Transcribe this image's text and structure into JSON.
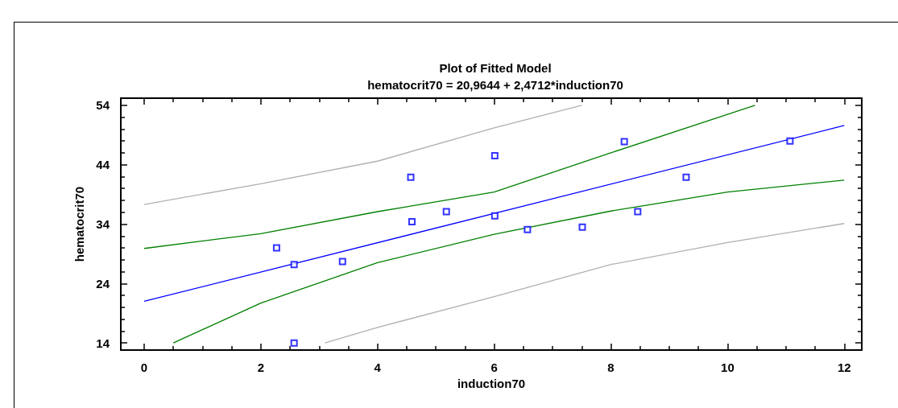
{
  "chart_data": {
    "type": "scatter",
    "title": "Plot of Fitted Model",
    "subtitle": "hematocrit70 = 20,9644 + 2,4712*induction70",
    "xlabel": "induction70",
    "ylabel": "hematocrit70",
    "xlim": [
      -0.4,
      12.3
    ],
    "ylim": [
      12.8,
      55.2
    ],
    "xticks": [
      0,
      {
        "value": 0.5,
        "label": null
      },
      {
        "value": 1,
        "label": null
      },
      {
        "value": 1.5,
        "label": null
      },
      2,
      {
        "value": 2.5,
        "label": null
      },
      {
        "value": 3,
        "label": null
      },
      {
        "value": 3.5,
        "label": null
      },
      4,
      {
        "value": 4.5,
        "label": null
      },
      {
        "value": 5,
        "label": null
      },
      {
        "value": 5.5,
        "label": null
      },
      6,
      {
        "value": 6.5,
        "label": null
      },
      {
        "value": 7,
        "label": null
      },
      {
        "value": 7.5,
        "label": null
      },
      8,
      {
        "value": 8.5,
        "label": null
      },
      {
        "value": 9,
        "label": null
      },
      {
        "value": 9.5,
        "label": null
      },
      10,
      {
        "value": 10.5,
        "label": null
      },
      {
        "value": 11,
        "label": null
      },
      {
        "value": 11.5,
        "label": null
      },
      12
    ],
    "yticks": [
      14,
      {
        "value": 16,
        "label": null
      },
      {
        "value": 18,
        "label": null
      },
      {
        "value": 20,
        "label": null
      },
      {
        "value": 22,
        "label": null
      },
      24,
      {
        "value": 26,
        "label": null
      },
      {
        "value": 28,
        "label": null
      },
      {
        "value": 30,
        "label": null
      },
      {
        "value": 32,
        "label": null
      },
      34,
      {
        "value": 36,
        "label": null
      },
      {
        "value": 38,
        "label": null
      },
      {
        "value": 40,
        "label": null
      },
      {
        "value": 42,
        "label": null
      },
      44,
      {
        "value": 46,
        "label": null
      },
      {
        "value": 48,
        "label": null
      },
      {
        "value": 50,
        "label": null
      },
      {
        "value": 52,
        "label": null
      },
      54
    ],
    "grid": false,
    "series": [
      {
        "marker": "square",
        "color": "#0000ff",
        "x": [
          2.27,
          2.57,
          2.57,
          3.4,
          4.57,
          4.59,
          5.18,
          6.01,
          6.01,
          6.57,
          7.51,
          8.23,
          8.46,
          9.29,
          11.07
        ],
        "values": [
          30.0,
          27.2,
          14.0,
          27.7,
          41.9,
          34.4,
          36.1,
          45.5,
          35.4,
          33.1,
          33.5,
          47.9,
          36.1,
          41.9,
          48.0
        ]
      },
      {
        "type": "line",
        "marker": "none",
        "color": "#0000ff",
        "x": [
          0,
          12
        ],
        "values": [
          21.0,
          50.6
        ]
      },
      {
        "type": "line",
        "marker": "none",
        "color": "#008000",
        "x": [
          0,
          2,
          4,
          6,
          8,
          10.47
        ],
        "values": [
          29.9,
          32.4,
          36.1,
          39.4,
          46.0,
          54.0
        ]
      },
      {
        "type": "line",
        "marker": "none",
        "color": "#008000",
        "x": [
          0.5,
          2,
          4,
          6,
          8,
          10,
          12
        ],
        "values": [
          14.0,
          20.7,
          27.5,
          32.3,
          36.2,
          39.4,
          41.4
        ]
      },
      {
        "type": "line",
        "marker": "none",
        "color": "#b0b0b0",
        "x": [
          0,
          2,
          4,
          6,
          7.5
        ],
        "values": [
          37.3,
          40.8,
          44.6,
          50.2,
          54.0
        ]
      },
      {
        "type": "line",
        "marker": "none",
        "color": "#b0b0b0",
        "x": [
          3.1,
          4,
          6,
          8,
          10,
          12
        ],
        "values": [
          14.0,
          16.6,
          21.8,
          27.2,
          30.9,
          34.1
        ]
      }
    ]
  }
}
